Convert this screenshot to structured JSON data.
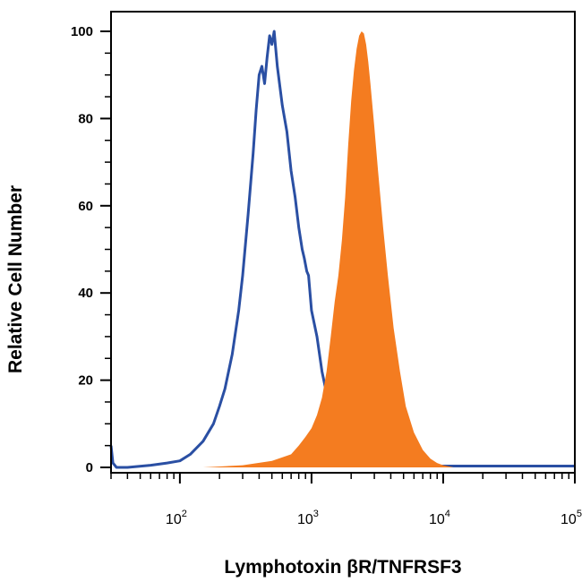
{
  "chart_data": {
    "type": "area",
    "xlabel": "Lymphotoxin βR/TNFRSF3",
    "ylabel": "Relative Cell Number",
    "x_scale": "log",
    "xlim": [
      30,
      100000
    ],
    "ylim": [
      0,
      100
    ],
    "x_ticks": [
      {
        "value": 100,
        "base": "10",
        "exp": "2"
      },
      {
        "value": 1000,
        "base": "10",
        "exp": "3"
      },
      {
        "value": 10000,
        "base": "10",
        "exp": "4"
      },
      {
        "value": 100000,
        "base": "10",
        "exp": "5"
      }
    ],
    "y_ticks": [
      0,
      20,
      40,
      60,
      80,
      100
    ],
    "grid": false,
    "legend": "none",
    "series": [
      {
        "style": "line",
        "color": "#2a4fa3",
        "points": [
          [
            30,
            5
          ],
          [
            31,
            1
          ],
          [
            33,
            0
          ],
          [
            40,
            0
          ],
          [
            60,
            0.5
          ],
          [
            80,
            1
          ],
          [
            100,
            1.5
          ],
          [
            120,
            3
          ],
          [
            150,
            6
          ],
          [
            180,
            10
          ],
          [
            200,
            14
          ],
          [
            220,
            18
          ],
          [
            250,
            26
          ],
          [
            280,
            36
          ],
          [
            300,
            44
          ],
          [
            330,
            58
          ],
          [
            360,
            72
          ],
          [
            380,
            82
          ],
          [
            400,
            90
          ],
          [
            420,
            92
          ],
          [
            440,
            88
          ],
          [
            460,
            94
          ],
          [
            480,
            99
          ],
          [
            500,
            97
          ],
          [
            520,
            100
          ],
          [
            550,
            92
          ],
          [
            600,
            83
          ],
          [
            650,
            77
          ],
          [
            700,
            68
          ],
          [
            750,
            62
          ],
          [
            800,
            55
          ],
          [
            850,
            50
          ],
          [
            880,
            48
          ],
          [
            920,
            45
          ],
          [
            950,
            44
          ],
          [
            1000,
            36
          ],
          [
            1100,
            30
          ],
          [
            1200,
            22
          ],
          [
            1300,
            17
          ],
          [
            1400,
            12
          ],
          [
            1600,
            8
          ],
          [
            1800,
            5
          ],
          [
            2000,
            3
          ],
          [
            2500,
            1.5
          ],
          [
            3000,
            1
          ],
          [
            4000,
            0.5
          ],
          [
            6000,
            0.3
          ],
          [
            10000,
            0.3
          ],
          [
            100000,
            0.3
          ]
        ]
      },
      {
        "style": "filled",
        "color": "#f47c20",
        "points": [
          [
            30,
            0
          ],
          [
            150,
            0
          ],
          [
            300,
            0.5
          ],
          [
            500,
            1.5
          ],
          [
            700,
            3
          ],
          [
            800,
            5
          ],
          [
            900,
            7
          ],
          [
            1000,
            9
          ],
          [
            1100,
            12
          ],
          [
            1200,
            16
          ],
          [
            1300,
            22
          ],
          [
            1400,
            30
          ],
          [
            1500,
            38
          ],
          [
            1600,
            44
          ],
          [
            1700,
            52
          ],
          [
            1800,
            62
          ],
          [
            1900,
            74
          ],
          [
            2000,
            84
          ],
          [
            2100,
            91
          ],
          [
            2200,
            96
          ],
          [
            2300,
            99
          ],
          [
            2400,
            100
          ],
          [
            2500,
            99.5
          ],
          [
            2600,
            97
          ],
          [
            2700,
            93
          ],
          [
            2800,
            88
          ],
          [
            3000,
            78
          ],
          [
            3200,
            68
          ],
          [
            3500,
            55
          ],
          [
            3800,
            44
          ],
          [
            4200,
            32
          ],
          [
            4700,
            22
          ],
          [
            5200,
            14
          ],
          [
            6000,
            8
          ],
          [
            7000,
            4
          ],
          [
            8000,
            2
          ],
          [
            9000,
            1
          ],
          [
            10000,
            0.5
          ],
          [
            12000,
            0
          ],
          [
            100000,
            0
          ]
        ]
      }
    ]
  }
}
